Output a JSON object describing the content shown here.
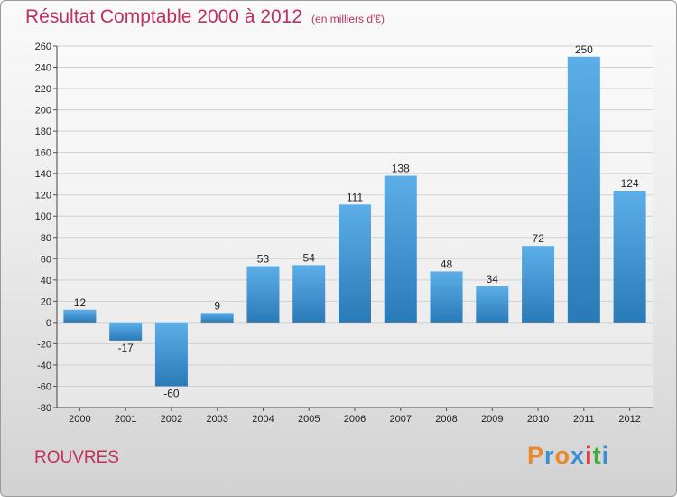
{
  "header": {
    "title": "Résultat Comptable 2000 à 2012",
    "subtitle": "(en milliers d'€)"
  },
  "footer": {
    "city": "ROUVRES",
    "logo": "Proxiti"
  },
  "colors": {
    "title": "#c0305c",
    "bar_light": "#5caee8",
    "bar_dark": "#2a7ab8",
    "grid": "#d0d0d0",
    "logo_letters": [
      "#e8892b",
      "#3a8fd8",
      "#e8892b",
      "#3a8fd8",
      "#e03a3a",
      "#3fae3f",
      "#3a8fd8"
    ]
  },
  "chart_data": {
    "type": "bar",
    "title": "Résultat Comptable 2000 à 2012",
    "subtitle": "(en milliers d'€)",
    "xlabel": "",
    "ylabel": "",
    "categories": [
      "2000",
      "2001",
      "2002",
      "2003",
      "2004",
      "2005",
      "2006",
      "2007",
      "2008",
      "2009",
      "2010",
      "2011",
      "2012"
    ],
    "values": [
      12,
      -17,
      -60,
      9,
      53,
      54,
      111,
      138,
      48,
      34,
      72,
      250,
      124
    ],
    "ylim": [
      -80,
      260
    ],
    "yticks": [
      -80,
      -60,
      -40,
      -20,
      0,
      20,
      40,
      60,
      80,
      100,
      120,
      140,
      160,
      180,
      200,
      220,
      240,
      260
    ],
    "grid": true,
    "legend": "none"
  }
}
